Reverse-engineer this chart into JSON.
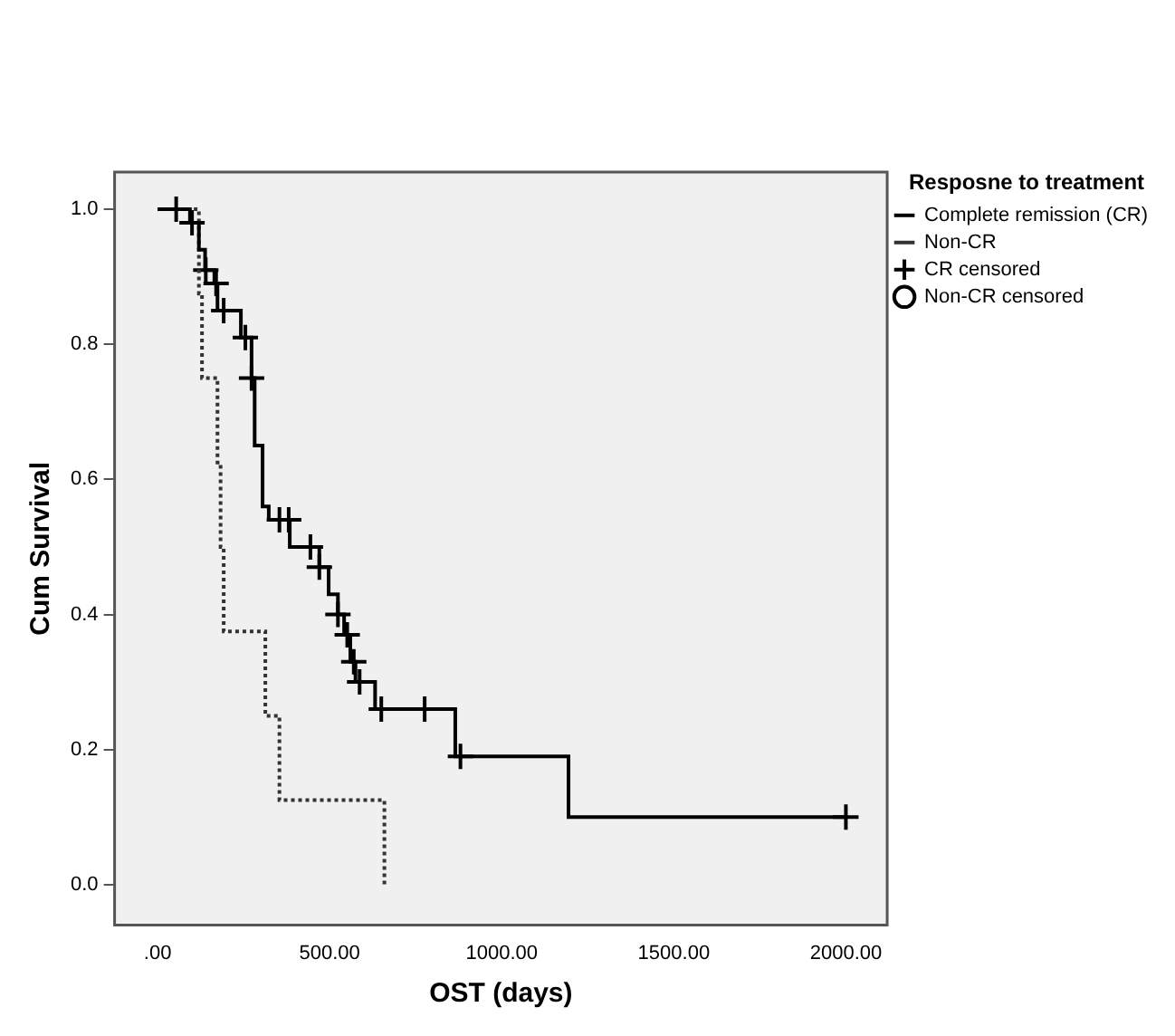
{
  "chart_data": {
    "type": "step",
    "xlabel": "OST (days)",
    "ylabel": "Cum Survival",
    "legend_title": "Resposne to treatment",
    "legend": "right",
    "grid": false,
    "xlim": [
      -125,
      2120
    ],
    "ylim": [
      -0.06,
      1.055
    ],
    "xticks": [
      {
        "value": 0,
        "label": ".00"
      },
      {
        "value": 500,
        "label": "500.00"
      },
      {
        "value": 1000,
        "label": "1000.00"
      },
      {
        "value": 1500,
        "label": "1500.00"
      },
      {
        "value": 2000,
        "label": "2000.00"
      }
    ],
    "yticks": [
      {
        "value": 0,
        "label": "0.0"
      },
      {
        "value": 0.2,
        "label": "0.2"
      },
      {
        "value": 0.4,
        "label": "0.4"
      },
      {
        "value": 0.6,
        "label": "0.6"
      },
      {
        "value": 0.8,
        "label": "0.8"
      },
      {
        "value": 1,
        "label": "1.0"
      }
    ],
    "series": [
      {
        "name": "Complete remission (CR)",
        "color": "#000000",
        "line_style": "solid",
        "x": [
          0,
          94,
          120,
          138,
          165,
          174,
          242,
          273,
          282,
          305,
          323,
          384,
          470,
          497,
          524,
          542,
          560,
          575,
          632,
          865,
          1194,
          2000
        ],
        "values": [
          1.0,
          0.98,
          0.94,
          0.91,
          0.89,
          0.85,
          0.81,
          0.75,
          0.65,
          0.56,
          0.54,
          0.5,
          0.47,
          0.43,
          0.4,
          0.37,
          0.33,
          0.3,
          0.26,
          0.19,
          0.1,
          0.1
        ]
      },
      {
        "name": "Non-CR",
        "color": "#333333",
        "line_style": "dotted",
        "x": [
          0,
          120,
          129,
          174,
          183,
          192,
          313,
          354,
          659
        ],
        "values": [
          1.0,
          0.875,
          0.75,
          0.625,
          0.5,
          0.375,
          0.25,
          0.125,
          0.0
        ]
      },
      {
        "name": "CR censored",
        "type": "scatter",
        "color": "#000000",
        "marker": "cross",
        "x": [
          54,
          100,
          140,
          170,
          192,
          255,
          273,
          354,
          381,
          444,
          470,
          524,
          551,
          570,
          587,
          650,
          776,
          880,
          2000
        ],
        "values": [
          1.0,
          0.98,
          0.91,
          0.89,
          0.85,
          0.81,
          0.75,
          0.54,
          0.54,
          0.5,
          0.47,
          0.4,
          0.37,
          0.33,
          0.3,
          0.26,
          0.26,
          0.19,
          0.1
        ]
      },
      {
        "name": "Non-CR censored",
        "type": "scatter",
        "color": "#000000",
        "marker": "circle"
      }
    ]
  }
}
